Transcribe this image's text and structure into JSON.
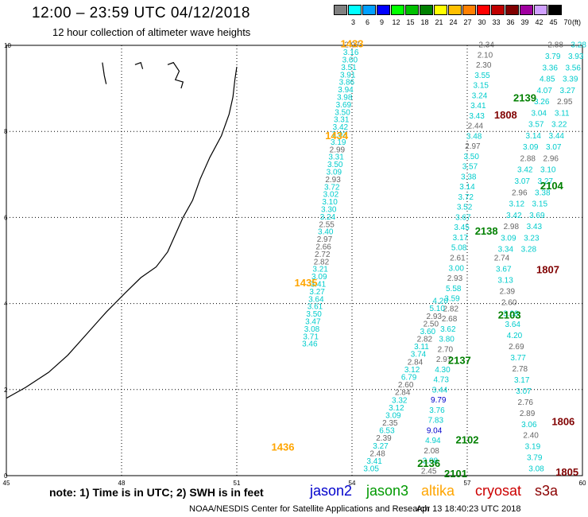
{
  "header": {
    "title": "12:00 – 23:59 UTC 04/12/2018",
    "subtitle": "12 hour collection of altimeter wave heights"
  },
  "color_scale": {
    "labels": [
      "3",
      "6",
      "9",
      "12",
      "15",
      "18",
      "21",
      "24",
      "27",
      "30",
      "33",
      "36",
      "39",
      "42",
      "45",
      "70"
    ],
    "unit": "(ft)",
    "colors": [
      "#808080",
      "#00ffff",
      "#00a0ff",
      "#0000ff",
      "#00ff00",
      "#00c000",
      "#008000",
      "#ffff00",
      "#ffc000",
      "#ff8000",
      "#ff0000",
      "#c00000",
      "#800000",
      "#a000a0",
      "#d0a0ff",
      "#000000"
    ]
  },
  "footer": {
    "note": "note: 1) Time is in UTC; 2) SWH is in feet",
    "credit": "NOAA/NESDIS Center for Satellite Applications and Research",
    "timestamp": "Apr 13 18:40:23 UTC 2018"
  },
  "satellites": [
    {
      "name": "jason2",
      "color": "#0000cc"
    },
    {
      "name": "jason3",
      "color": "#009900"
    },
    {
      "name": "altika",
      "color": "#ffa500"
    },
    {
      "name": "cryosat",
      "color": "#cc0000"
    },
    {
      "name": "s3a",
      "color": "#8b0000"
    }
  ],
  "chart_data": {
    "type": "scatter",
    "xlim": [
      45,
      60
    ],
    "ylim": [
      0,
      10
    ],
    "x_ticks": [
      "45",
      "48",
      "51",
      "54",
      "57",
      "60"
    ],
    "y_ticks": [
      "0",
      "2",
      "4",
      "6",
      "8",
      "10"
    ],
    "grid": true,
    "coastline": [
      [
        51,
        9.5
      ],
      [
        50.95,
        9.2
      ],
      [
        50.9,
        8.8
      ],
      [
        50.8,
        8.4
      ],
      [
        50.6,
        7.9
      ],
      [
        50.3,
        7.4
      ],
      [
        50.05,
        6.9
      ],
      [
        49.85,
        6.4
      ],
      [
        49.6,
        6.0
      ],
      [
        49.4,
        5.6
      ],
      [
        49.2,
        5.2
      ],
      [
        48.9,
        4.85
      ],
      [
        48.5,
        4.6
      ],
      [
        48.1,
        4.25
      ],
      [
        47.6,
        3.8
      ],
      [
        47.1,
        3.3
      ],
      [
        46.6,
        2.8
      ],
      [
        46.1,
        2.4
      ],
      [
        45.5,
        2.05
      ],
      [
        45,
        1.8
      ]
    ],
    "islands": [
      [
        [
          47.5,
          9.6
        ],
        [
          47.55,
          9.3
        ],
        [
          47.6,
          9.1
        ]
      ],
      [
        [
          48.35,
          9.55
        ],
        [
          48.5,
          9.6
        ],
        [
          48.55,
          9.45
        ]
      ],
      [
        [
          49.2,
          9.55
        ],
        [
          49.35,
          9.6
        ],
        [
          49.5,
          9.4
        ],
        [
          49.4,
          9.2
        ],
        [
          49.6,
          9.15
        ],
        [
          49.55,
          9.0
        ]
      ]
    ],
    "passes": [
      {
        "id": "1433",
        "color": "#ffa500",
        "x": 54.0,
        "y": 9.95
      },
      {
        "id": "1434",
        "color": "#ffa500",
        "x": 53.6,
        "y": 7.82
      },
      {
        "id": "1435",
        "color": "#ffa500",
        "x": 52.8,
        "y": 4.4
      },
      {
        "id": "1436",
        "color": "#ffa500",
        "x": 52.2,
        "y": 0.58
      },
      {
        "id": "1808",
        "color": "#800000",
        "x": 58.0,
        "y": 8.3
      },
      {
        "id": "1807",
        "color": "#800000",
        "x": 59.1,
        "y": 4.7
      },
      {
        "id": "1806",
        "color": "#800000",
        "x": 59.5,
        "y": 1.17
      },
      {
        "id": "1805",
        "color": "#800000",
        "x": 59.6,
        "y": 0.0
      },
      {
        "id": "2139",
        "color": "#008000",
        "x": 58.5,
        "y": 8.7
      },
      {
        "id": "2104",
        "color": "#008000",
        "x": 59.2,
        "y": 6.65
      },
      {
        "id": "2138",
        "color": "#008000",
        "x": 57.5,
        "y": 5.6
      },
      {
        "id": "2103",
        "color": "#008000",
        "x": 58.1,
        "y": 3.65
      },
      {
        "id": "2137",
        "color": "#008000",
        "x": 56.8,
        "y": 2.6
      },
      {
        "id": "2102",
        "color": "#008000",
        "x": 57.0,
        "y": 0.75
      },
      {
        "id": "2136",
        "color": "#008000",
        "x": 56.0,
        "y": 0.2
      },
      {
        "id": "2101",
        "color": "#008000",
        "x": 56.7,
        "y": -0.04
      }
    ],
    "tracks": [
      {
        "name": "altika-upper",
        "color": "#00cccc",
        "x0": 54.0,
        "y0": 9.95,
        "x1": 52.9,
        "y1": 3.0,
        "values": [
          "2.97",
          "3.16",
          "3.60",
          "3.51",
          "3.91",
          "3.86",
          "3.94",
          "3.98",
          "3.69",
          "3.50",
          "3.31",
          "3.42",
          "7.92",
          "3.19",
          "2.99",
          "3.31",
          "3.50",
          "3.09",
          "2.93",
          "3.72",
          "3.02",
          "3.10",
          "3.30",
          "3.24",
          "2.55",
          "3.40",
          "2.97",
          "2.66",
          "2.72",
          "2.82",
          "3.21",
          "3.09",
          "3.41",
          "3.27",
          "3.64",
          "3.61",
          "3.50",
          "3.47",
          "3.08",
          "3.71",
          "3.46"
        ]
      },
      {
        "name": "jason3-track",
        "color": "#00cccc",
        "x0": 56.0,
        "y0": 0.05,
        "x1": 57.5,
        "y1": 9.95,
        "values": [
          "2.45",
          "3.08",
          "2.08",
          "4.94",
          "9.04",
          "7.83",
          "3.76",
          "9.79",
          "3.44",
          "4.73",
          "4.30",
          "2.97",
          "2.70",
          "3.80",
          "3.62",
          "2.68",
          "2.82",
          "3.59",
          "5.58",
          "2.93",
          "3.00",
          "2.61",
          "5.08",
          "3.17",
          "3.45",
          "3.67",
          "3.52",
          "3.72",
          "3.14",
          "3.38",
          "3.57",
          "3.50",
          "2.97",
          "3.48",
          "2.44",
          "3.43",
          "3.41",
          "3.24",
          "3.15",
          "3.55",
          "2.30",
          "2.10",
          "2.34"
        ]
      },
      {
        "name": "jason3-lower",
        "color": "#00cccc",
        "x0": 54.5,
        "y0": 0.1,
        "x1": 56.3,
        "y1": 4.0,
        "values": [
          "3.05",
          "3.41",
          "2.48",
          "3.27",
          "2.39",
          "6.53",
          "2.35",
          "3.09",
          "3.12",
          "3.32",
          "2.84",
          "2.60",
          "6.79",
          "3.12",
          "2.84",
          "3.74",
          "3.11",
          "2.82",
          "3.60",
          "2.50",
          "2.93",
          "5.10",
          "4.20"
        ]
      },
      {
        "name": "cryosat-track",
        "color": "#00cccc",
        "x0": 58.8,
        "y0": 0.1,
        "x1": 57.9,
        "y1": 5.0,
        "values": [
          "3.08",
          "3.79",
          "3.19",
          "2.40",
          "3.06",
          "2.89",
          "2.76",
          "3.07",
          "3.17",
          "2.78",
          "3.77",
          "2.69",
          "4.20",
          "3.64",
          "3.09",
          "2.60",
          "2.39",
          "3.13",
          "3.67",
          "2.74"
        ]
      },
      {
        "name": "s3a-track",
        "color": "#00cccc",
        "x0": 58.0,
        "y0": 5.2,
        "x1": 59.3,
        "y1": 9.95,
        "values": [
          "3.34",
          "3.09",
          "2.98",
          "3.42",
          "3.12",
          "2.96",
          "3.07",
          "3.42",
          "2.88",
          "3.09",
          "3.14",
          "3.57",
          "3.04",
          "3.26",
          "4.07",
          "4.85",
          "3.36",
          "3.79",
          "2.88"
        ]
      },
      {
        "name": "jason2-track",
        "color": "#00cccc",
        "x0": 58.6,
        "y0": 5.2,
        "x1": 59.9,
        "y1": 9.95,
        "values": [
          "3.28",
          "3.23",
          "3.43",
          "3.69",
          "3.15",
          "3.38",
          "3.27",
          "3.10",
          "2.96",
          "3.07",
          "3.44",
          "3.22",
          "3.11",
          "2.95",
          "3.27",
          "3.39",
          "3.56",
          "3.93",
          "3.28"
        ]
      }
    ]
  }
}
